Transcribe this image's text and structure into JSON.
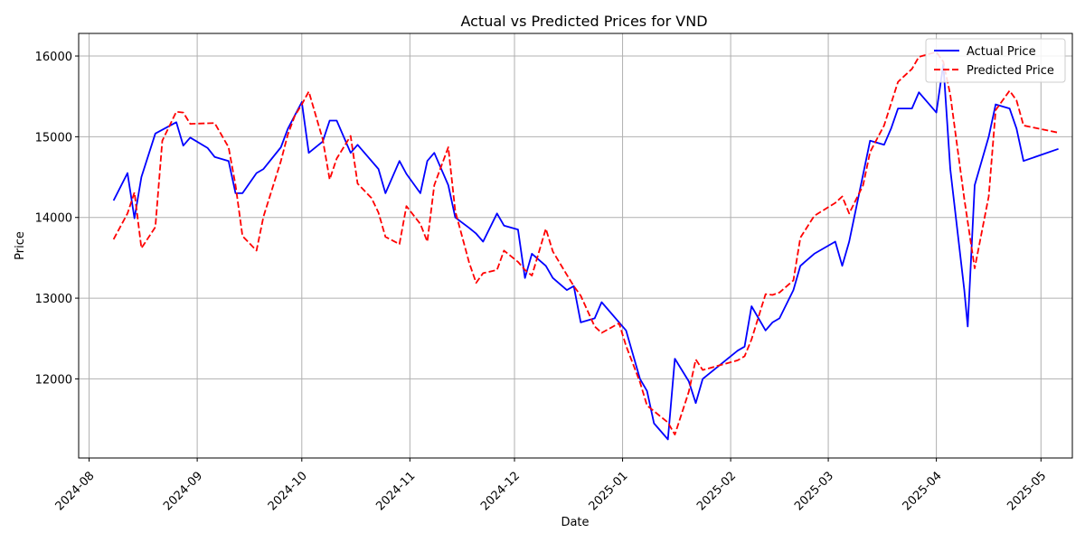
{
  "chart_data": {
    "type": "line",
    "title": "Actual vs Predicted Prices for VND",
    "xlabel": "Date",
    "ylabel": "Price",
    "grid": true,
    "legend_position": "top-right",
    "x_ticks": [
      "2024-08",
      "2024-09",
      "2024-10",
      "2024-11",
      "2024-12",
      "2025-01",
      "2025-02",
      "2025-03",
      "2025-04",
      "2025-05"
    ],
    "y_ticks": [
      12000,
      13000,
      14000,
      15000,
      16000
    ],
    "xlim": [
      "2024-07-29",
      "2025-05-10"
    ],
    "ylim": [
      11020,
      16280
    ],
    "series": [
      {
        "name": "Actual Price",
        "color": "#0000ff",
        "dash": "solid",
        "points": [
          [
            "2024-08-08",
            14210
          ],
          [
            "2024-08-12",
            14550
          ],
          [
            "2024-08-14",
            13990
          ],
          [
            "2024-08-16",
            14500
          ],
          [
            "2024-08-20",
            15040
          ],
          [
            "2024-08-26",
            15180
          ],
          [
            "2024-08-28",
            14890
          ],
          [
            "2024-08-30",
            14990
          ],
          [
            "2024-09-04",
            14860
          ],
          [
            "2024-09-06",
            14750
          ],
          [
            "2024-09-10",
            14700
          ],
          [
            "2024-09-12",
            14300
          ],
          [
            "2024-09-14",
            14300
          ],
          [
            "2024-09-18",
            14550
          ],
          [
            "2024-09-20",
            14600
          ],
          [
            "2024-09-25",
            14870
          ],
          [
            "2024-09-27",
            15100
          ],
          [
            "2024-10-01",
            15430
          ],
          [
            "2024-10-03",
            14800
          ],
          [
            "2024-10-07",
            14940
          ],
          [
            "2024-10-09",
            15200
          ],
          [
            "2024-10-11",
            15200
          ],
          [
            "2024-10-15",
            14800
          ],
          [
            "2024-10-17",
            14900
          ],
          [
            "2024-10-23",
            14600
          ],
          [
            "2024-10-25",
            14300
          ],
          [
            "2024-10-29",
            14700
          ],
          [
            "2024-10-31",
            14540
          ],
          [
            "2024-11-04",
            14300
          ],
          [
            "2024-11-06",
            14700
          ],
          [
            "2024-11-08",
            14800
          ],
          [
            "2024-11-12",
            14400
          ],
          [
            "2024-11-14",
            14000
          ],
          [
            "2024-11-18",
            13870
          ],
          [
            "2024-11-20",
            13800
          ],
          [
            "2024-11-22",
            13700
          ],
          [
            "2024-11-26",
            14050
          ],
          [
            "2024-11-28",
            13900
          ],
          [
            "2024-12-02",
            13850
          ],
          [
            "2024-12-04",
            13250
          ],
          [
            "2024-12-06",
            13550
          ],
          [
            "2024-12-10",
            13400
          ],
          [
            "2024-12-12",
            13250
          ],
          [
            "2024-12-16",
            13100
          ],
          [
            "2024-12-18",
            13150
          ],
          [
            "2024-12-20",
            12700
          ],
          [
            "2024-12-24",
            12750
          ],
          [
            "2024-12-26",
            12950
          ],
          [
            "2025-01-02",
            12600
          ],
          [
            "2025-01-06",
            12000
          ],
          [
            "2025-01-08",
            11850
          ],
          [
            "2025-01-10",
            11450
          ],
          [
            "2025-01-14",
            11250
          ],
          [
            "2025-01-16",
            12250
          ],
          [
            "2025-01-20",
            11970
          ],
          [
            "2025-01-22",
            11700
          ],
          [
            "2025-01-24",
            12000
          ],
          [
            "2025-02-03",
            12350
          ],
          [
            "2025-02-05",
            12400
          ],
          [
            "2025-02-07",
            12900
          ],
          [
            "2025-02-11",
            12600
          ],
          [
            "2025-02-13",
            12700
          ],
          [
            "2025-02-15",
            12750
          ],
          [
            "2025-02-19",
            13100
          ],
          [
            "2025-02-21",
            13400
          ],
          [
            "2025-02-25",
            13550
          ],
          [
            "2025-03-03",
            13700
          ],
          [
            "2025-03-05",
            13400
          ],
          [
            "2025-03-07",
            13700
          ],
          [
            "2025-03-13",
            14950
          ],
          [
            "2025-03-17",
            14900
          ],
          [
            "2025-03-19",
            15100
          ],
          [
            "2025-03-21",
            15350
          ],
          [
            "2025-03-25",
            15350
          ],
          [
            "2025-03-27",
            15550
          ],
          [
            "2025-04-01",
            15300
          ],
          [
            "2025-04-03",
            15900
          ],
          [
            "2025-04-05",
            14600
          ],
          [
            "2025-04-09",
            13100
          ],
          [
            "2025-04-10",
            12650
          ],
          [
            "2025-04-12",
            14400
          ],
          [
            "2025-04-16",
            15000
          ],
          [
            "2025-04-18",
            15400
          ],
          [
            "2025-04-22",
            15350
          ],
          [
            "2025-04-24",
            15100
          ],
          [
            "2025-04-26",
            14700
          ],
          [
            "2025-05-06",
            14850
          ]
        ]
      },
      {
        "name": "Predicted Price",
        "color": "#ff0000",
        "dash": "dashed",
        "points": [
          [
            "2024-08-08",
            13730
          ],
          [
            "2024-08-12",
            14050
          ],
          [
            "2024-08-14",
            14310
          ],
          [
            "2024-08-16",
            13620
          ],
          [
            "2024-08-20",
            13880
          ],
          [
            "2024-08-22",
            14950
          ],
          [
            "2024-08-26",
            15310
          ],
          [
            "2024-08-28",
            15300
          ],
          [
            "2024-08-30",
            15160
          ],
          [
            "2024-09-06",
            15170
          ],
          [
            "2024-09-10",
            14870
          ],
          [
            "2024-09-12",
            14400
          ],
          [
            "2024-09-14",
            13770
          ],
          [
            "2024-09-18",
            13590
          ],
          [
            "2024-09-20",
            14010
          ],
          [
            "2024-09-25",
            14700
          ],
          [
            "2024-09-27",
            15030
          ],
          [
            "2024-09-29",
            15260
          ],
          [
            "2024-10-01",
            15400
          ],
          [
            "2024-10-03",
            15560
          ],
          [
            "2024-10-07",
            14970
          ],
          [
            "2024-10-09",
            14470
          ],
          [
            "2024-10-11",
            14730
          ],
          [
            "2024-10-15",
            15010
          ],
          [
            "2024-10-17",
            14420
          ],
          [
            "2024-10-21",
            14240
          ],
          [
            "2024-10-23",
            14060
          ],
          [
            "2024-10-25",
            13760
          ],
          [
            "2024-10-29",
            13670
          ],
          [
            "2024-10-31",
            14140
          ],
          [
            "2024-11-04",
            13920
          ],
          [
            "2024-11-06",
            13700
          ],
          [
            "2024-11-08",
            14400
          ],
          [
            "2024-11-12",
            14870
          ],
          [
            "2024-11-14",
            14080
          ],
          [
            "2024-11-18",
            13440
          ],
          [
            "2024-11-20",
            13190
          ],
          [
            "2024-11-22",
            13310
          ],
          [
            "2024-11-26",
            13350
          ],
          [
            "2024-11-28",
            13590
          ],
          [
            "2024-12-02",
            13450
          ],
          [
            "2024-12-04",
            13350
          ],
          [
            "2024-12-06",
            13280
          ],
          [
            "2024-12-10",
            13860
          ],
          [
            "2024-12-12",
            13580
          ],
          [
            "2024-12-16",
            13290
          ],
          [
            "2024-12-18",
            13150
          ],
          [
            "2024-12-20",
            13030
          ],
          [
            "2024-12-24",
            12650
          ],
          [
            "2024-12-26",
            12570
          ],
          [
            "2024-12-31",
            12690
          ],
          [
            "2025-01-02",
            12410
          ],
          [
            "2025-01-06",
            11960
          ],
          [
            "2025-01-08",
            11670
          ],
          [
            "2025-01-14",
            11460
          ],
          [
            "2025-01-16",
            11310
          ],
          [
            "2025-01-20",
            11840
          ],
          [
            "2025-01-22",
            12240
          ],
          [
            "2025-01-24",
            12110
          ],
          [
            "2025-02-03",
            12230
          ],
          [
            "2025-02-05",
            12280
          ],
          [
            "2025-02-07",
            12490
          ],
          [
            "2025-02-11",
            13050
          ],
          [
            "2025-02-13",
            13040
          ],
          [
            "2025-02-15",
            13070
          ],
          [
            "2025-02-19",
            13220
          ],
          [
            "2025-02-21",
            13750
          ],
          [
            "2025-02-25",
            14020
          ],
          [
            "2025-03-03",
            14180
          ],
          [
            "2025-03-05",
            14260
          ],
          [
            "2025-03-07",
            14050
          ],
          [
            "2025-03-11",
            14400
          ],
          [
            "2025-03-13",
            14810
          ],
          [
            "2025-03-17",
            15140
          ],
          [
            "2025-03-21",
            15680
          ],
          [
            "2025-03-25",
            15840
          ],
          [
            "2025-03-27",
            15990
          ],
          [
            "2025-04-01",
            16050
          ],
          [
            "2025-04-03",
            15930
          ],
          [
            "2025-04-05",
            15520
          ],
          [
            "2025-04-09",
            14230
          ],
          [
            "2025-04-12",
            13370
          ],
          [
            "2025-04-16",
            14260
          ],
          [
            "2025-04-18",
            15330
          ],
          [
            "2025-04-22",
            15570
          ],
          [
            "2025-04-24",
            15450
          ],
          [
            "2025-04-26",
            15140
          ],
          [
            "2025-05-06",
            15050
          ]
        ]
      }
    ]
  }
}
